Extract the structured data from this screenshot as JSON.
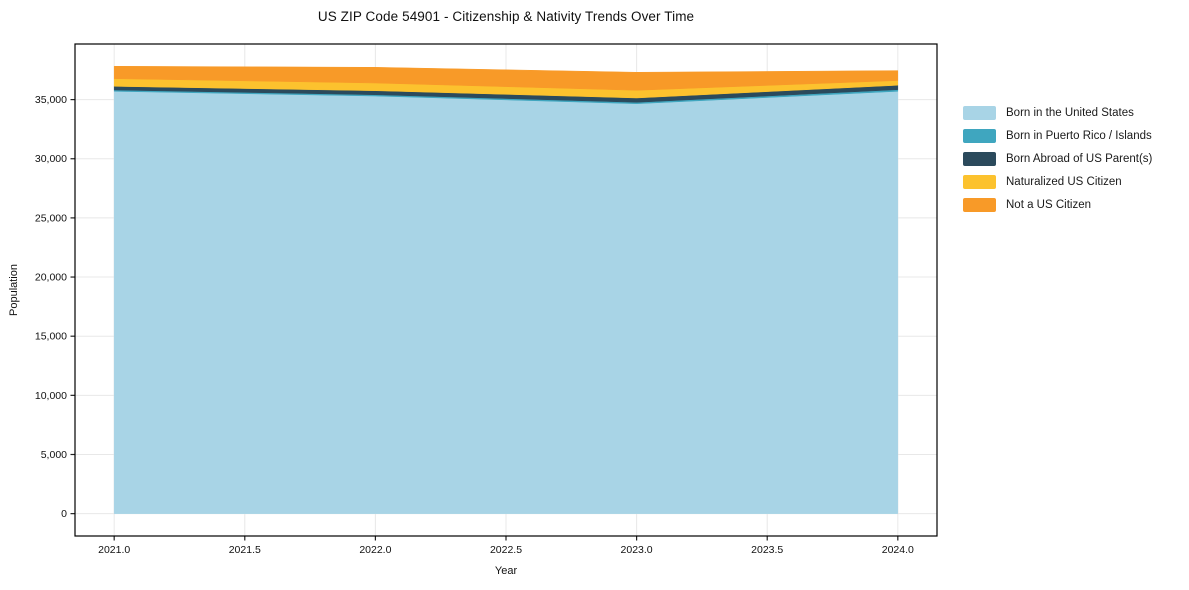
{
  "chart_data": {
    "type": "area",
    "stacked": true,
    "title": "US ZIP Code 54901 - Citizenship & Nativity Trends Over Time",
    "xlabel": "Year",
    "ylabel": "Population",
    "x": [
      2021,
      2022,
      2023,
      2024
    ],
    "series": [
      {
        "name": "Born in the United States",
        "color": "#a8d4e6",
        "values": [
          35700,
          35300,
          34650,
          35700
        ]
      },
      {
        "name": "Born in Puerto Rico / Islands",
        "color": "#3fa6bf",
        "values": [
          110,
          110,
          120,
          140
        ]
      },
      {
        "name": "Born Abroad of US Parent(s)",
        "color": "#2b4a5c",
        "values": [
          310,
          340,
          365,
          370
        ]
      },
      {
        "name": "Naturalized US Citizen",
        "color": "#fcc22e",
        "values": [
          650,
          650,
          650,
          400
        ]
      },
      {
        "name": "Not a US Citizen",
        "color": "#f89a28",
        "values": [
          1050,
          1330,
          1525,
          840
        ]
      }
    ],
    "xlim": [
      2020.85,
      2024.15
    ],
    "ylim": [
      -1890,
      39700
    ],
    "xticks": {
      "values": [
        2021.0,
        2021.5,
        2022.0,
        2022.5,
        2023.0,
        2023.5,
        2024.0
      ],
      "labels": [
        "2021.0",
        "2021.5",
        "2022.0",
        "2022.5",
        "2023.0",
        "2023.5",
        "2024.0"
      ]
    },
    "yticks": {
      "values": [
        0,
        5000,
        10000,
        15000,
        20000,
        25000,
        30000,
        35000
      ],
      "labels": [
        "0",
        "5,000",
        "10,000",
        "15,000",
        "20,000",
        "25,000",
        "30,000",
        "35,000"
      ]
    },
    "grid": true,
    "legend_position": "right-outside",
    "colors": {
      "grid": "#e8e8e8",
      "spine": "#000000",
      "tick": "#222222",
      "text": "#111111",
      "background": "#ffffff"
    }
  }
}
